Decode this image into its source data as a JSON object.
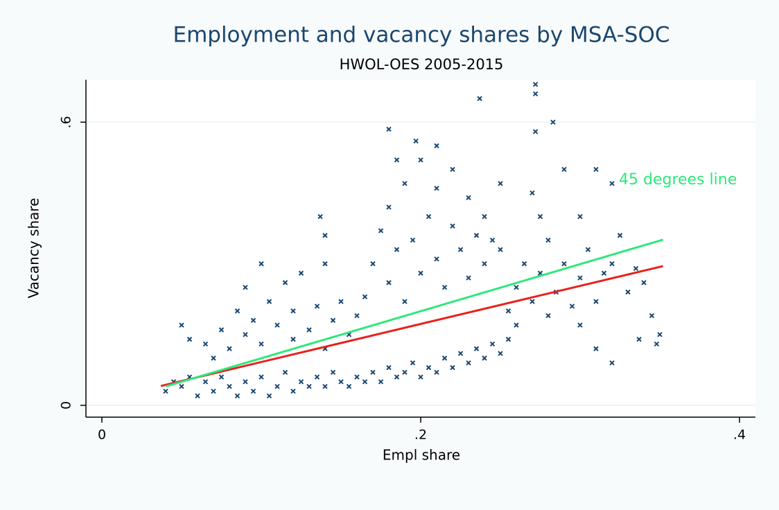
{
  "chart_data": {
    "type": "scatter",
    "title": "Employment and vacancy shares by MSA-SOC",
    "subtitle": "HWOL-OES 2005-2015",
    "x_label": "Empl share",
    "y_label": "Vacancy share",
    "annotation": "45 degrees line",
    "xlim": [
      -0.01,
      0.41
    ],
    "ylim": [
      -0.025,
      0.69
    ],
    "xticks": [
      0,
      {
        "value": 0.2,
        "label": ".2"
      },
      {
        "value": 0.4,
        "label": ".4"
      }
    ],
    "yticks": [
      0,
      {
        "value": 0.6,
        "label": ".6"
      }
    ],
    "grid": true,
    "series": [
      {
        "type": "scatter",
        "color": "#1a476f",
        "x": [
          0.04,
          0.045,
          0.05,
          0.055,
          0.06,
          0.065,
          0.07,
          0.075,
          0.08,
          0.085,
          0.09,
          0.095,
          0.1,
          0.105,
          0.11,
          0.115,
          0.12,
          0.125,
          0.13,
          0.135,
          0.14,
          0.145,
          0.15,
          0.155,
          0.16,
          0.165,
          0.17,
          0.175,
          0.18,
          0.185,
          0.19,
          0.195,
          0.2,
          0.205,
          0.21,
          0.215,
          0.22,
          0.225,
          0.23,
          0.235,
          0.24,
          0.245,
          0.25,
          0.255,
          0.065,
          0.07,
          0.075,
          0.08,
          0.085,
          0.09,
          0.09,
          0.095,
          0.1,
          0.1,
          0.105,
          0.11,
          0.115,
          0.12,
          0.12,
          0.125,
          0.13,
          0.135,
          0.14,
          0.14,
          0.145,
          0.15,
          0.155,
          0.16,
          0.14,
          0.137,
          0.05,
          0.055,
          0.165,
          0.17,
          0.175,
          0.18,
          0.18,
          0.185,
          0.19,
          0.19,
          0.195,
          0.2,
          0.2,
          0.205,
          0.21,
          0.21,
          0.215,
          0.22,
          0.22,
          0.225,
          0.23,
          0.23,
          0.235,
          0.24,
          0.24,
          0.245,
          0.25,
          0.25,
          0.197,
          0.185,
          0.21,
          0.255,
          0.26,
          0.26,
          0.265,
          0.27,
          0.27,
          0.275,
          0.28,
          0.28,
          0.285,
          0.29,
          0.29,
          0.295,
          0.3,
          0.3,
          0.305,
          0.31,
          0.31,
          0.315,
          0.32,
          0.32,
          0.325,
          0.33,
          0.335,
          0.34,
          0.345,
          0.35,
          0.348,
          0.31,
          0.32,
          0.337,
          0.3,
          0.275,
          0.237,
          0.272,
          0.272,
          0.272,
          0.283,
          0.18
        ],
        "values": [
          0.03,
          0.05,
          0.04,
          0.06,
          0.02,
          0.05,
          0.03,
          0.06,
          0.04,
          0.02,
          0.05,
          0.03,
          0.06,
          0.02,
          0.04,
          0.07,
          0.03,
          0.05,
          0.04,
          0.06,
          0.04,
          0.07,
          0.05,
          0.04,
          0.06,
          0.05,
          0.07,
          0.05,
          0.08,
          0.06,
          0.07,
          0.09,
          0.06,
          0.08,
          0.07,
          0.1,
          0.08,
          0.11,
          0.09,
          0.12,
          0.1,
          0.13,
          0.11,
          0.14,
          0.13,
          0.1,
          0.16,
          0.12,
          0.2,
          0.15,
          0.25,
          0.18,
          0.3,
          0.13,
          0.22,
          0.17,
          0.26,
          0.14,
          0.2,
          0.28,
          0.16,
          0.21,
          0.12,
          0.3,
          0.18,
          0.22,
          0.15,
          0.19,
          0.36,
          0.4,
          0.17,
          0.14,
          0.23,
          0.3,
          0.37,
          0.26,
          0.42,
          0.33,
          0.22,
          0.47,
          0.35,
          0.28,
          0.52,
          0.4,
          0.31,
          0.46,
          0.25,
          0.38,
          0.5,
          0.33,
          0.27,
          0.44,
          0.36,
          0.4,
          0.3,
          0.35,
          0.33,
          0.47,
          0.56,
          0.52,
          0.55,
          0.2,
          0.25,
          0.17,
          0.3,
          0.22,
          0.45,
          0.28,
          0.19,
          0.35,
          0.24,
          0.3,
          0.5,
          0.21,
          0.27,
          0.4,
          0.33,
          0.22,
          0.5,
          0.28,
          0.47,
          0.3,
          0.36,
          0.24,
          0.29,
          0.26,
          0.19,
          0.15,
          0.13,
          0.12,
          0.09,
          0.14,
          0.17,
          0.4,
          0.65,
          0.68,
          0.66,
          0.58,
          0.6,
          0.585
        ]
      },
      {
        "type": "line",
        "color": "#e8211d",
        "x": [
          0.037,
          0.352
        ],
        "values": [
          0.041,
          0.295
        ]
      },
      {
        "type": "line",
        "color": "#2ee87a",
        "x": [
          0.04,
          0.352
        ],
        "values": [
          0.04,
          0.351
        ]
      }
    ]
  }
}
